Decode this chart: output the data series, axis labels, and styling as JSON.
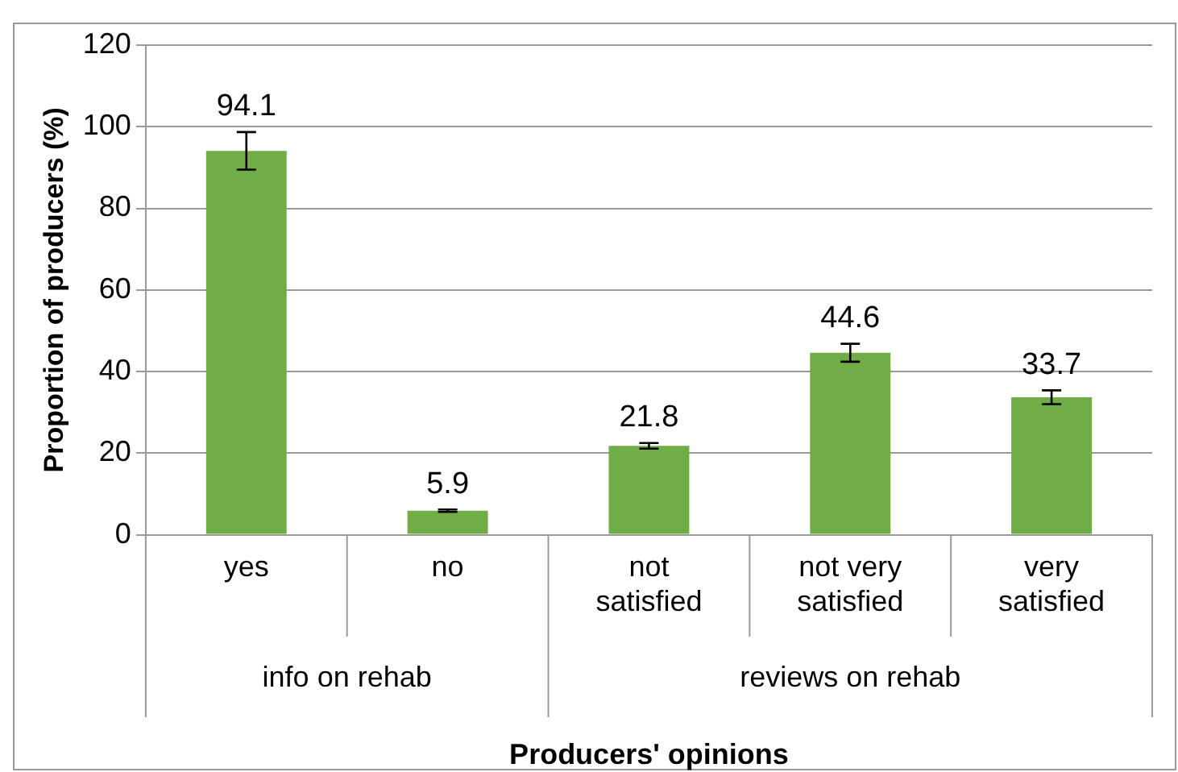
{
  "chart_data": {
    "type": "bar",
    "xlabel": "Producers' opinions",
    "ylabel": "Proportion of producers (%)",
    "categories": [
      "yes",
      "no",
      "not satisfied",
      "not very satisfied",
      "very satisfied"
    ],
    "values": [
      94.1,
      5.9,
      21.8,
      44.6,
      33.7
    ],
    "errors": [
      4.6,
      0.3,
      0.7,
      2.2,
      1.7
    ],
    "color": "#70ad47",
    "ylim": [
      0,
      120
    ],
    "yticks": [
      0,
      20,
      40,
      60,
      80,
      100,
      120
    ],
    "grid": "y",
    "data_labels": true,
    "legend": false,
    "annotations": [
      "info on rehab",
      "reviews on rehab"
    ]
  }
}
